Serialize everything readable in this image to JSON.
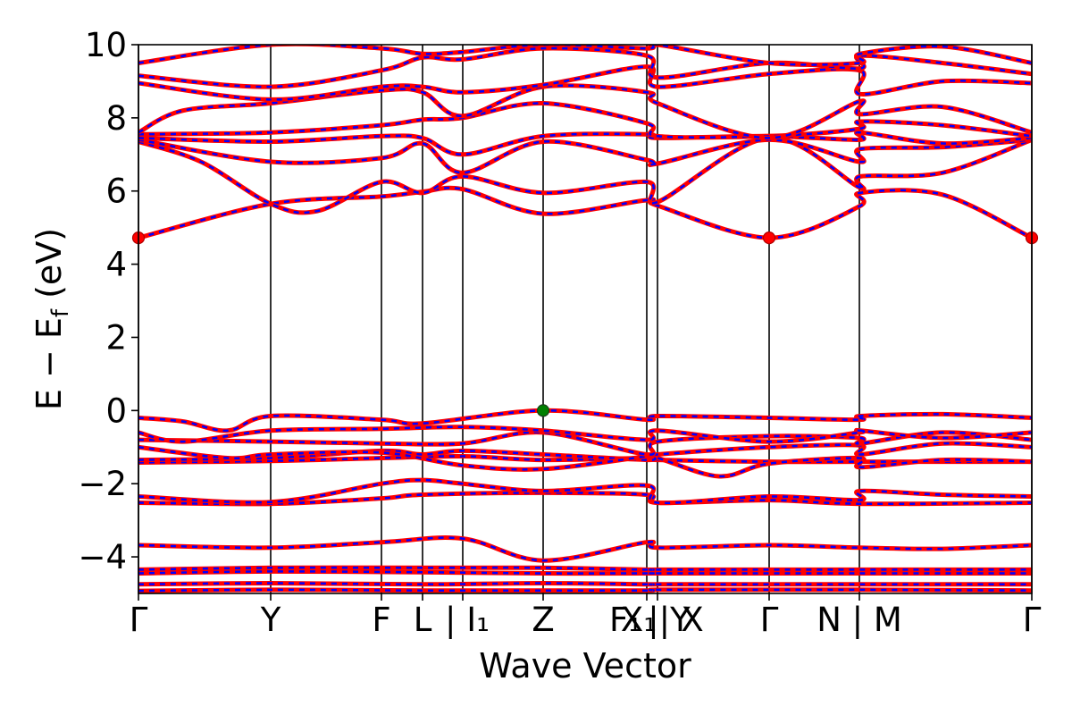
{
  "chart_data": {
    "type": "line",
    "title": "",
    "xlabel": "Wave Vector",
    "ylabel": "E − E_f (eV)",
    "ylabel_parts": {
      "main": "E − E",
      "sub": "f",
      "unit": " (eV)"
    },
    "ylim": [
      -5,
      10
    ],
    "xlim": [
      0,
      1
    ],
    "yticks": [
      -4,
      -2,
      0,
      2,
      4,
      6,
      8,
      10
    ],
    "ytick_labels": [
      "−4",
      "−2",
      "0",
      "2",
      "4",
      "6",
      "8",
      "10"
    ],
    "kpoint_positions": [
      0,
      0.148,
      0.272,
      0.318,
      0.363,
      0.453,
      0.569,
      0.581,
      0.706,
      0.807,
      1.0
    ],
    "kpoint_labels": [
      {
        "text": "Γ",
        "x": 0
      },
      {
        "text": "Y",
        "x": 0.148
      },
      {
        "text": "F",
        "x": 0.272
      },
      {
        "text": "L",
        "x": 0.318
      },
      {
        "text": "| I₁",
        "x": 0.368
      },
      {
        "text": "Z",
        "x": 0.453
      },
      {
        "text": "F₁",
        "x": 0.545
      },
      {
        "text": "X₁",
        "x": 0.56
      },
      {
        "text": "||Y",
        "x": 0.594
      },
      {
        "text": "X",
        "x": 0.62
      },
      {
        "text": "Γ",
        "x": 0.706
      },
      {
        "text": "N | M",
        "x": 0.807
      },
      {
        "text": "Γ",
        "x": 1.0
      }
    ],
    "band_colors": {
      "up": "#ff0000",
      "down": "#0000ff"
    },
    "marker_colors": {
      "cbm": "#ff0000",
      "vbm": "#008000"
    },
    "markers": [
      {
        "name": "cbm",
        "x": 0.0,
        "y": 4.72
      },
      {
        "name": "cbm",
        "x": 0.706,
        "y": 4.72
      },
      {
        "name": "cbm",
        "x": 1.0,
        "y": 4.72
      },
      {
        "name": "vbm",
        "x": 0.453,
        "y": 0.0
      }
    ],
    "bands": [
      {
        "name": "valence-deep-1",
        "points": [
          [
            0,
            -4.93
          ],
          [
            0.148,
            -4.9
          ],
          [
            0.318,
            -4.92
          ],
          [
            0.453,
            -4.92
          ],
          [
            0.569,
            -4.92
          ],
          [
            0.581,
            -4.9
          ],
          [
            0.706,
            -4.9
          ],
          [
            0.807,
            -4.9
          ],
          [
            1.0,
            -4.92
          ]
        ]
      },
      {
        "name": "valence-deep-2",
        "points": [
          [
            0,
            -4.75
          ],
          [
            0.148,
            -4.72
          ],
          [
            0.318,
            -4.75
          ],
          [
            0.453,
            -4.72
          ],
          [
            0.569,
            -4.75
          ],
          [
            0.581,
            -4.75
          ],
          [
            0.706,
            -4.75
          ],
          [
            0.807,
            -4.75
          ],
          [
            1.0,
            -4.75
          ]
        ]
      },
      {
        "name": "valence-deep-3",
        "points": [
          [
            0,
            -4.45
          ],
          [
            0.148,
            -4.4
          ],
          [
            0.318,
            -4.42
          ],
          [
            0.453,
            -4.45
          ],
          [
            0.569,
            -4.45
          ],
          [
            0.581,
            -4.45
          ],
          [
            0.706,
            -4.45
          ],
          [
            0.807,
            -4.45
          ],
          [
            1.0,
            -4.45
          ]
        ]
      },
      {
        "name": "valence-deep-4",
        "points": [
          [
            0,
            -4.35
          ],
          [
            0.148,
            -4.3
          ],
          [
            0.318,
            -4.3
          ],
          [
            0.453,
            -4.3
          ],
          [
            0.569,
            -4.35
          ],
          [
            0.581,
            -4.35
          ],
          [
            0.706,
            -4.35
          ],
          [
            0.807,
            -4.35
          ],
          [
            1.0,
            -4.35
          ]
        ]
      },
      {
        "name": "valence-mid-1",
        "points": [
          [
            0,
            -3.68
          ],
          [
            0.148,
            -3.75
          ],
          [
            0.272,
            -3.6
          ],
          [
            0.363,
            -3.5
          ],
          [
            0.453,
            -4.1
          ],
          [
            0.569,
            -3.6
          ],
          [
            0.581,
            -3.75
          ],
          [
            0.706,
            -3.68
          ],
          [
            0.807,
            -3.75
          ],
          [
            0.9,
            -3.78
          ],
          [
            1.0,
            -3.68
          ]
        ]
      },
      {
        "name": "valence-mid-2",
        "points": [
          [
            0,
            -2.52
          ],
          [
            0.148,
            -2.55
          ],
          [
            0.272,
            -2.4
          ],
          [
            0.318,
            -2.3
          ],
          [
            0.453,
            -2.25
          ],
          [
            0.569,
            -2.3
          ],
          [
            0.581,
            -2.52
          ],
          [
            0.706,
            -2.45
          ],
          [
            0.807,
            -2.55
          ],
          [
            1.0,
            -2.52
          ]
        ]
      },
      {
        "name": "valence-mid-3",
        "points": [
          [
            0,
            -2.35
          ],
          [
            0.148,
            -2.5
          ],
          [
            0.272,
            -2.0
          ],
          [
            0.318,
            -1.9
          ],
          [
            0.363,
            -2.0
          ],
          [
            0.453,
            -2.2
          ],
          [
            0.569,
            -2.05
          ],
          [
            0.581,
            -2.52
          ],
          [
            0.706,
            -2.35
          ],
          [
            0.807,
            -2.45
          ],
          [
            0.808,
            -2.2
          ],
          [
            0.9,
            -2.3
          ],
          [
            1.0,
            -2.35
          ]
        ]
      },
      {
        "name": "valence-top-1",
        "points": [
          [
            0,
            -1.42
          ],
          [
            0.148,
            -1.38
          ],
          [
            0.272,
            -1.3
          ],
          [
            0.363,
            -1.25
          ],
          [
            0.453,
            -1.35
          ],
          [
            0.569,
            -1.3
          ],
          [
            0.581,
            -1.35
          ],
          [
            0.706,
            -1.4
          ],
          [
            0.807,
            -1.4
          ],
          [
            1.0,
            -1.4
          ]
        ]
      },
      {
        "name": "valence-top-2",
        "points": [
          [
            0,
            -1.35
          ],
          [
            0.148,
            -1.3
          ],
          [
            0.272,
            -1.1
          ],
          [
            0.318,
            -1.2
          ],
          [
            0.363,
            -1.1
          ],
          [
            0.453,
            -1.2
          ],
          [
            0.569,
            -1.35
          ],
          [
            0.581,
            -1.3
          ],
          [
            0.65,
            -1.8
          ],
          [
            0.706,
            -1.45
          ],
          [
            0.807,
            -1.3
          ],
          [
            0.808,
            -1.55
          ],
          [
            0.9,
            -1.35
          ],
          [
            1.0,
            -1.4
          ]
        ]
      },
      {
        "name": "valence-top-3",
        "points": [
          [
            0,
            -1.0
          ],
          [
            0.1,
            -1.3
          ],
          [
            0.148,
            -1.2
          ],
          [
            0.272,
            -1.15
          ],
          [
            0.363,
            -1.5
          ],
          [
            0.453,
            -1.6
          ],
          [
            0.569,
            -1.25
          ],
          [
            0.581,
            -1.2
          ],
          [
            0.706,
            -1.0
          ],
          [
            0.807,
            -0.95
          ],
          [
            0.808,
            -1.2
          ],
          [
            0.9,
            -0.9
          ],
          [
            1.0,
            -1.0
          ]
        ]
      },
      {
        "name": "valence-top-4",
        "points": [
          [
            0,
            -0.8
          ],
          [
            0.148,
            -0.85
          ],
          [
            0.272,
            -0.9
          ],
          [
            0.363,
            -0.9
          ],
          [
            0.453,
            -0.6
          ],
          [
            0.569,
            -1.2
          ],
          [
            0.581,
            -0.85
          ],
          [
            0.706,
            -0.7
          ],
          [
            0.807,
            -0.75
          ],
          [
            0.808,
            -0.9
          ],
          [
            0.9,
            -0.6
          ],
          [
            1.0,
            -0.8
          ]
        ]
      },
      {
        "name": "valence-top-5",
        "points": [
          [
            0,
            -0.6
          ],
          [
            0.05,
            -0.85
          ],
          [
            0.148,
            -0.55
          ],
          [
            0.272,
            -0.5
          ],
          [
            0.363,
            -0.45
          ],
          [
            0.453,
            -0.55
          ],
          [
            0.569,
            -0.8
          ],
          [
            0.581,
            -0.55
          ],
          [
            0.706,
            -0.85
          ],
          [
            0.807,
            -0.6
          ],
          [
            0.808,
            -0.55
          ],
          [
            0.9,
            -0.75
          ],
          [
            1.0,
            -0.6
          ]
        ]
      },
      {
        "name": "valence-top-6",
        "points": [
          [
            0,
            -0.2
          ],
          [
            0.05,
            -0.3
          ],
          [
            0.1,
            -0.55
          ],
          [
            0.148,
            -0.15
          ],
          [
            0.272,
            -0.25
          ],
          [
            0.318,
            -0.35
          ],
          [
            0.453,
            0.0
          ],
          [
            0.569,
            -0.25
          ],
          [
            0.581,
            -0.15
          ],
          [
            0.706,
            -0.2
          ],
          [
            0.807,
            -0.25
          ],
          [
            0.808,
            -0.15
          ],
          [
            0.9,
            -0.1
          ],
          [
            1.0,
            -0.2
          ]
        ]
      },
      {
        "name": "conduction-1",
        "points": [
          [
            0,
            4.72
          ],
          [
            0.148,
            5.65
          ],
          [
            0.272,
            5.85
          ],
          [
            0.318,
            5.98
          ],
          [
            0.363,
            6.05
          ],
          [
            0.453,
            5.38
          ],
          [
            0.569,
            5.75
          ],
          [
            0.581,
            5.6
          ],
          [
            0.706,
            4.72
          ],
          [
            0.807,
            5.58
          ],
          [
            0.808,
            5.95
          ],
          [
            0.9,
            5.9
          ],
          [
            1.0,
            4.72
          ]
        ]
      },
      {
        "name": "conduction-2",
        "points": [
          [
            0,
            7.35
          ],
          [
            0.07,
            6.8
          ],
          [
            0.148,
            5.65
          ],
          [
            0.2,
            5.45
          ],
          [
            0.272,
            6.25
          ],
          [
            0.318,
            5.95
          ],
          [
            0.363,
            6.4
          ],
          [
            0.453,
            5.95
          ],
          [
            0.569,
            6.25
          ],
          [
            0.581,
            5.7
          ],
          [
            0.706,
            7.45
          ],
          [
            0.807,
            6.1
          ],
          [
            0.808,
            6.4
          ],
          [
            0.9,
            6.5
          ],
          [
            1.0,
            7.4
          ]
        ]
      },
      {
        "name": "conduction-3",
        "points": [
          [
            0,
            7.4
          ],
          [
            0.148,
            6.8
          ],
          [
            0.272,
            6.9
          ],
          [
            0.318,
            7.3
          ],
          [
            0.363,
            6.5
          ],
          [
            0.453,
            7.35
          ],
          [
            0.569,
            6.85
          ],
          [
            0.581,
            6.75
          ],
          [
            0.706,
            7.4
          ],
          [
            0.807,
            6.8
          ],
          [
            0.808,
            7.15
          ],
          [
            0.9,
            7.2
          ],
          [
            1.0,
            7.4
          ]
        ]
      },
      {
        "name": "conduction-4",
        "points": [
          [
            0,
            7.45
          ],
          [
            0.148,
            7.35
          ],
          [
            0.272,
            7.5
          ],
          [
            0.318,
            7.45
          ],
          [
            0.363,
            7.0
          ],
          [
            0.453,
            7.5
          ],
          [
            0.569,
            7.55
          ],
          [
            0.581,
            7.45
          ],
          [
            0.706,
            7.5
          ],
          [
            0.807,
            7.4
          ],
          [
            0.808,
            7.6
          ],
          [
            0.9,
            7.3
          ],
          [
            1.0,
            7.45
          ]
        ]
      },
      {
        "name": "conduction-5",
        "points": [
          [
            0,
            7.55
          ],
          [
            0.148,
            7.6
          ],
          [
            0.272,
            7.8
          ],
          [
            0.318,
            7.95
          ],
          [
            0.363,
            8.0
          ],
          [
            0.453,
            8.4
          ],
          [
            0.569,
            7.85
          ],
          [
            0.581,
            7.5
          ],
          [
            0.706,
            7.5
          ],
          [
            0.807,
            7.7
          ],
          [
            0.808,
            7.9
          ],
          [
            0.9,
            7.8
          ],
          [
            1.0,
            7.5
          ]
        ]
      },
      {
        "name": "conduction-6",
        "points": [
          [
            0,
            7.6
          ],
          [
            0.05,
            8.2
          ],
          [
            0.148,
            8.4
          ],
          [
            0.272,
            8.75
          ],
          [
            0.318,
            8.7
          ],
          [
            0.363,
            8.05
          ],
          [
            0.453,
            8.85
          ],
          [
            0.569,
            8.7
          ],
          [
            0.581,
            8.4
          ],
          [
            0.706,
            7.45
          ],
          [
            0.807,
            8.45
          ],
          [
            0.808,
            8.1
          ],
          [
            0.9,
            8.3
          ],
          [
            1.0,
            7.6
          ]
        ]
      },
      {
        "name": "conduction-7",
        "points": [
          [
            0,
            8.95
          ],
          [
            0.148,
            8.5
          ],
          [
            0.272,
            8.85
          ],
          [
            0.318,
            8.85
          ],
          [
            0.363,
            8.7
          ],
          [
            0.453,
            8.9
          ],
          [
            0.569,
            9.4
          ],
          [
            0.581,
            8.85
          ],
          [
            0.706,
            9.2
          ],
          [
            0.807,
            9.3
          ],
          [
            0.808,
            8.65
          ],
          [
            0.9,
            9.0
          ],
          [
            1.0,
            8.95
          ]
        ]
      },
      {
        "name": "conduction-8",
        "points": [
          [
            0,
            9.15
          ],
          [
            0.148,
            8.85
          ],
          [
            0.272,
            9.3
          ],
          [
            0.318,
            9.65
          ],
          [
            0.363,
            9.6
          ],
          [
            0.453,
            9.9
          ],
          [
            0.569,
            9.7
          ],
          [
            0.581,
            9.1
          ],
          [
            0.706,
            9.5
          ],
          [
            0.807,
            9.35
          ],
          [
            0.808,
            9.7
          ],
          [
            0.9,
            9.5
          ],
          [
            1.0,
            9.2
          ]
        ]
      },
      {
        "name": "conduction-9",
        "points": [
          [
            0,
            9.5
          ],
          [
            0.148,
            10.0
          ],
          [
            0.272,
            9.9
          ],
          [
            0.318,
            9.75
          ],
          [
            0.363,
            9.8
          ],
          [
            0.453,
            10.0
          ],
          [
            0.569,
            9.9
          ],
          [
            0.581,
            10.0
          ],
          [
            0.706,
            9.5
          ],
          [
            0.807,
            9.5
          ],
          [
            0.808,
            9.75
          ],
          [
            0.9,
            9.95
          ],
          [
            1.0,
            9.5
          ]
        ]
      }
    ]
  }
}
